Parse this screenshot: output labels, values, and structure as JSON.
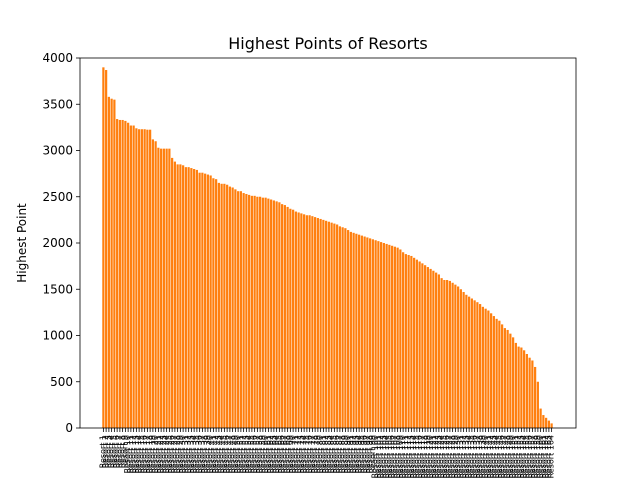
{
  "chart_data": {
    "type": "bar",
    "title": "Highest Points of Resorts",
    "xlabel": "",
    "ylabel": "Highest Point",
    "ylim": [
      0,
      4000
    ],
    "yticks": [
      0,
      500,
      1000,
      1500,
      2000,
      2500,
      3000,
      3500,
      4000
    ],
    "grid": false,
    "bar_color": "#ff7f0e",
    "categories": [
      "Resort 1",
      "Resort 2",
      "Resort 3",
      "Resort 4",
      "Resort 5",
      "Resort 6",
      "Resort 7",
      "Resort 8",
      "Resort 9",
      "Resort 10",
      "Resort 11",
      "Resort 12",
      "Resort 13",
      "Resort 14",
      "Resort 15",
      "Resort 16",
      "Resort 17",
      "Resort 18",
      "Resort 19",
      "Resort 20",
      "Resort 21",
      "Resort 22",
      "Resort 23",
      "Resort 24",
      "Resort 25",
      "Resort 26",
      "Resort 27",
      "Resort 28",
      "Resort 29",
      "Resort 30",
      "Resort 31",
      "Resort 32",
      "Resort 33",
      "Resort 34",
      "Resort 35",
      "Resort 36",
      "Resort 37",
      "Resort 38",
      "Resort 39",
      "Resort 40",
      "Resort 41",
      "Resort 42",
      "Resort 43",
      "Resort 44",
      "Resort 45",
      "Resort 46",
      "Resort 47",
      "Resort 48",
      "Resort 49",
      "Resort 50",
      "Resort 51",
      "Resort 52",
      "Resort 53",
      "Resort 54",
      "Resort 55",
      "Resort 56",
      "Resort 57",
      "Resort 58",
      "Resort 59",
      "Resort 60",
      "Resort 61",
      "Resort 62",
      "Resort 63",
      "Resort 64",
      "Resort 65",
      "Resort 66",
      "Resort 67",
      "Resort 68",
      "Resort 69",
      "Resort 70",
      "Resort 71",
      "Resort 72",
      "Resort 73",
      "Resort 74",
      "Resort 75",
      "Resort 76",
      "Resort 77",
      "Resort 78",
      "Resort 79",
      "Resort 80",
      "Resort 81",
      "Resort 82",
      "Resort 83",
      "Resort 84",
      "Resort 85",
      "Resort 86",
      "Resort 87",
      "Resort 88",
      "Resort 89",
      "Resort 90",
      "Resort 91",
      "Resort 92",
      "Resort 93",
      "Resort 94",
      "Resort 95",
      "Resort 96",
      "Resort 97",
      "Resort 98",
      "Resort 99",
      "Resort 100",
      "Resort 101",
      "Resort 102",
      "Resort 103",
      "Resort 104",
      "Resort 105",
      "Resort 106",
      "Resort 107",
      "Resort 108",
      "Resort 109",
      "Resort 110",
      "Resort 111",
      "Resort 112",
      "Resort 113",
      "Resort 114",
      "Resort 115",
      "Resort 116",
      "Resort 117",
      "Resort 118",
      "Resort 119",
      "Resort 120",
      "Resort 121",
      "Resort 122",
      "Resort 123",
      "Resort 124",
      "Resort 125",
      "Resort 126",
      "Resort 127",
      "Resort 128",
      "Resort 129",
      "Resort 130",
      "Resort 131",
      "Resort 132",
      "Resort 133",
      "Resort 134",
      "Resort 135",
      "Resort 136",
      "Resort 137",
      "Resort 138",
      "Resort 139",
      "Resort 140",
      "Resort 141",
      "Resort 142",
      "Resort 143",
      "Resort 144",
      "Resort 145",
      "Resort 146",
      "Resort 147",
      "Resort 148",
      "Resort 149",
      "Resort 150",
      "Resort 151",
      "Resort 152",
      "Resort 153",
      "Resort 154",
      "Resort 155",
      "Resort 156",
      "Resort 157",
      "Resort 158",
      "Resort 159",
      "Resort 160"
    ],
    "values": [
      3899,
      3870,
      3580,
      3560,
      3550,
      3340,
      3330,
      3330,
      3320,
      3300,
      3270,
      3270,
      3240,
      3230,
      3230,
      3230,
      3225,
      3225,
      3120,
      3100,
      3030,
      3020,
      3020,
      3020,
      3020,
      2920,
      2880,
      2850,
      2850,
      2840,
      2820,
      2820,
      2810,
      2800,
      2790,
      2760,
      2760,
      2750,
      2740,
      2730,
      2700,
      2690,
      2650,
      2640,
      2640,
      2630,
      2610,
      2600,
      2580,
      2560,
      2560,
      2540,
      2530,
      2520,
      2510,
      2510,
      2500,
      2500,
      2490,
      2490,
      2480,
      2470,
      2460,
      2450,
      2440,
      2420,
      2410,
      2390,
      2370,
      2360,
      2340,
      2330,
      2320,
      2310,
      2300,
      2300,
      2290,
      2280,
      2270,
      2260,
      2250,
      2240,
      2230,
      2220,
      2210,
      2200,
      2180,
      2170,
      2160,
      2140,
      2120,
      2110,
      2100,
      2090,
      2080,
      2070,
      2060,
      2050,
      2040,
      2030,
      2020,
      2010,
      2000,
      1990,
      1980,
      1970,
      1960,
      1950,
      1930,
      1900,
      1880,
      1870,
      1860,
      1840,
      1820,
      1800,
      1780,
      1760,
      1740,
      1720,
      1700,
      1680,
      1660,
      1620,
      1600,
      1600,
      1590,
      1570,
      1550,
      1530,
      1500,
      1470,
      1440,
      1420,
      1400,
      1380,
      1360,
      1340,
      1310,
      1290,
      1270,
      1240,
      1210,
      1180,
      1160,
      1120,
      1080,
      1060,
      1020,
      980,
      920,
      880,
      870,
      840,
      800,
      760,
      730,
      660,
      500,
      210
    ],
    "tail_values": [
      140,
      110,
      80,
      50
    ]
  }
}
